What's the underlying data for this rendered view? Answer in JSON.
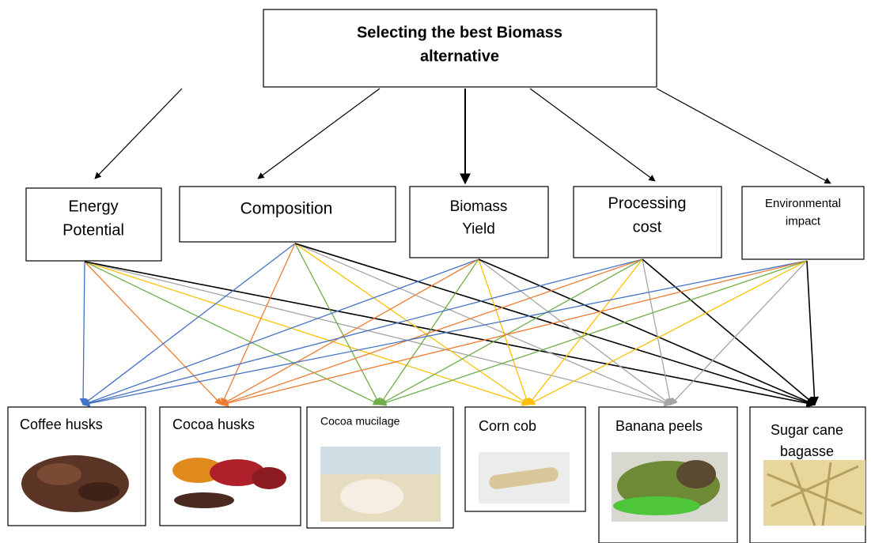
{
  "goal": {
    "lines": [
      "Selecting the best Biomass",
      "alternative"
    ]
  },
  "criteria": [
    {
      "lines": [
        "Energy",
        "Potential"
      ]
    },
    {
      "lines": [
        "Composition"
      ]
    },
    {
      "lines": [
        "Biomass",
        "Yield"
      ]
    },
    {
      "lines": [
        "Processing",
        "cost"
      ]
    },
    {
      "lines": [
        "Environmental",
        "impact"
      ]
    }
  ],
  "alternatives": [
    {
      "lines": [
        "Coffee husks"
      ]
    },
    {
      "lines": [
        "Cocoa husks"
      ]
    },
    {
      "lines": [
        "Cocoa mucilage"
      ]
    },
    {
      "lines": [
        "Corn cob"
      ]
    },
    {
      "lines": [
        "Banana peels"
      ]
    },
    {
      "lines": [
        "Sugar cane",
        "bagasse"
      ]
    }
  ]
}
